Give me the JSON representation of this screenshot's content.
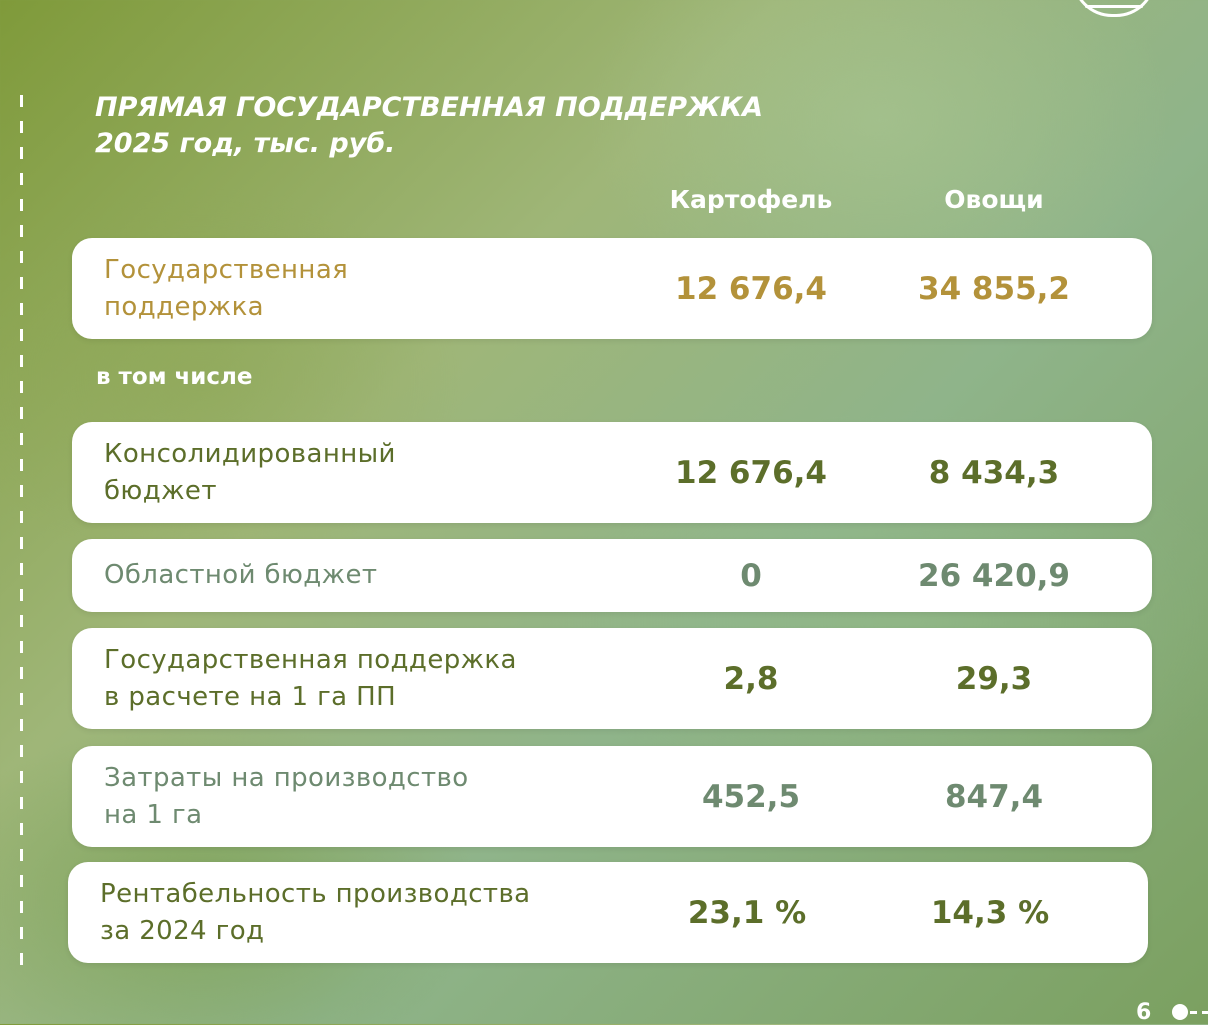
{
  "title": {
    "line1": "ПРЯМАЯ ГОСУДАРСТВЕННАЯ ПОДДЕРЖКА",
    "line2": "2025 год, тыс. руб."
  },
  "columns": [
    "Картофель",
    "Овощи"
  ],
  "subheading": "в том числе",
  "rows": [
    {
      "label": "Государственная\nподдержка",
      "potato": "12 676,4",
      "vegetables": "34 855,2"
    },
    {
      "label": "Консолидированный\nбюджет",
      "potato": "12 676,4",
      "vegetables": "8 434,3"
    },
    {
      "label": "Областной бюджет",
      "potato": "0",
      "vegetables": "26 420,9"
    },
    {
      "label": "Государственная поддержка\nв расчете на 1 га ПП",
      "potato": "2,8",
      "vegetables": "29,3"
    },
    {
      "label": "Затраты на производство\nна 1 га",
      "potato": "452,5",
      "vegetables": "847,4"
    },
    {
      "label": "Рентабельность производства\nза 2024 год",
      "potato": "23,1 %",
      "vegetables": "14,3 %"
    }
  ],
  "page_number": "6",
  "colors": {
    "gold": "#b3923a",
    "dark_green": "#5c6e2a",
    "muted_green": "#6e8a70"
  }
}
